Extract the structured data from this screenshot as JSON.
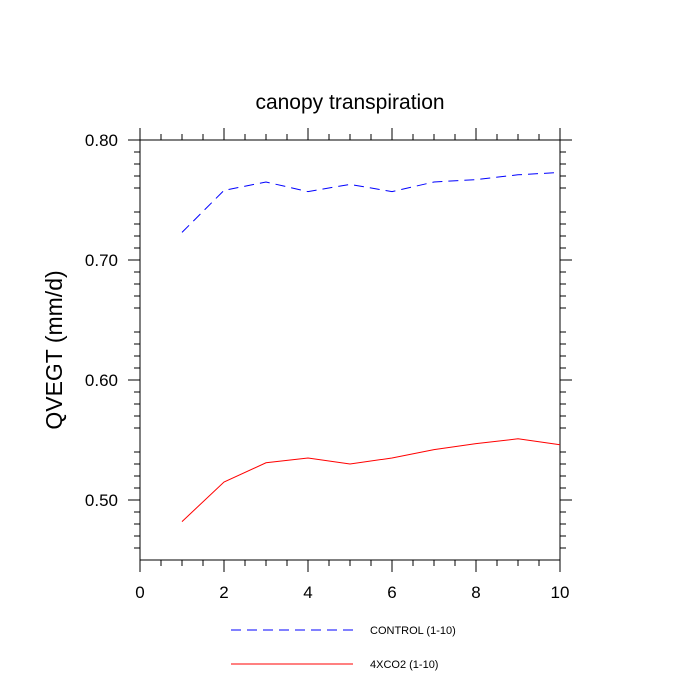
{
  "chart_data": {
    "type": "line",
    "title": "canopy transpiration",
    "xlabel": "",
    "ylabel": "QVEGT  (mm/d)",
    "xlim": [
      0,
      10
    ],
    "ylim": [
      0.45,
      0.8
    ],
    "xticks": [
      0,
      2,
      4,
      6,
      8,
      10
    ],
    "xtick_labels": [
      "0",
      "2",
      "4",
      "6",
      "8",
      "10"
    ],
    "yticks": [
      0.5,
      0.6,
      0.7,
      0.8
    ],
    "ytick_labels": [
      "0.50",
      "0.60",
      "0.70",
      "0.80"
    ],
    "grid": false,
    "legend_position": "bottom",
    "x": [
      1,
      2,
      3,
      4,
      5,
      6,
      7,
      8,
      9,
      10
    ],
    "series": [
      {
        "name": "CONTROL (1-10)",
        "color": "#0000ff",
        "style": "dashed",
        "values": [
          0.723,
          0.758,
          0.765,
          0.757,
          0.763,
          0.757,
          0.765,
          0.767,
          0.771,
          0.773
        ]
      },
      {
        "name": "4XCO2 (1-10)",
        "color": "#ff0000",
        "style": "solid",
        "values": [
          0.482,
          0.515,
          0.531,
          0.535,
          0.53,
          0.535,
          0.542,
          0.547,
          0.551,
          0.546
        ]
      }
    ]
  }
}
